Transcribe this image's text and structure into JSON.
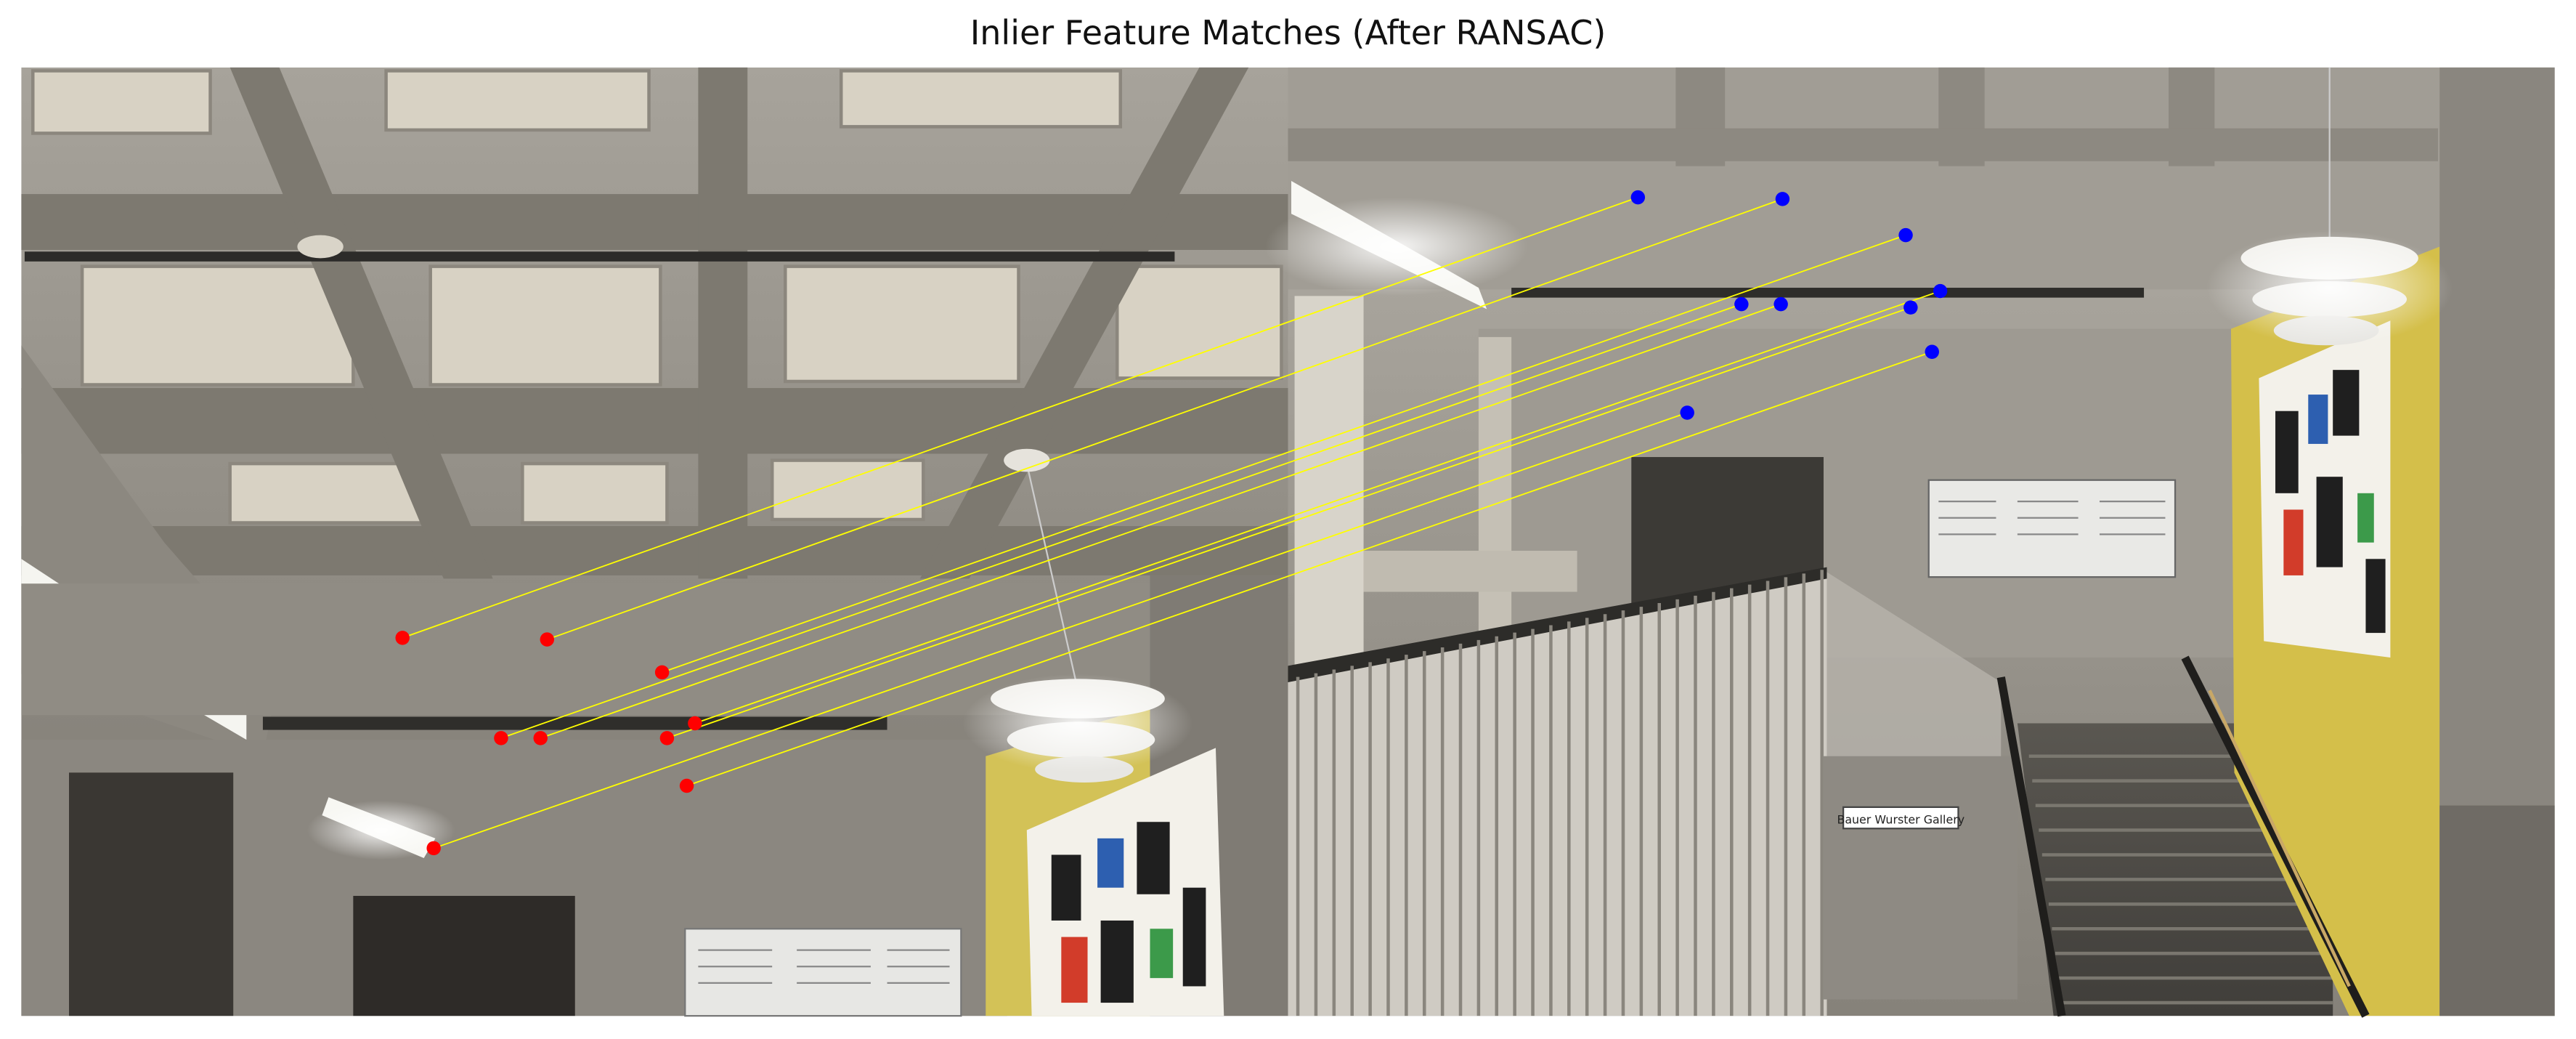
{
  "figure": {
    "title": "Inlier Feature Matches (After RANSAC)",
    "description_hidden": ""
  },
  "scene_text": {
    "gallery_sign": "Bauer Wurster Gallery"
  },
  "colors": {
    "match_line": "#ffff00",
    "left_keypoint": "#ff0000",
    "right_keypoint": "#0000ff",
    "concrete_light": "#a9a59d",
    "concrete_dark": "#6f6b64",
    "wall_yellow": "#d8c34e"
  },
  "matches": [
    {
      "left": [
        245,
        388
      ],
      "right": [
        997,
        120
      ]
    },
    {
      "left": [
        333,
        389
      ],
      "right": [
        1085,
        121
      ]
    },
    {
      "left": [
        403,
        409
      ],
      "right": [
        1160,
        143
      ]
    },
    {
      "left": [
        305,
        449
      ],
      "right": [
        1060,
        185
      ]
    },
    {
      "left": [
        329,
        449
      ],
      "right": [
        1084,
        185
      ]
    },
    {
      "left": [
        423,
        440
      ],
      "right": [
        1181,
        177
      ]
    },
    {
      "left": [
        406,
        449
      ],
      "right": [
        1163,
        187
      ]
    },
    {
      "left": [
        418,
        478
      ],
      "right": [
        1176,
        214
      ]
    },
    {
      "left": [
        264,
        516
      ],
      "right": [
        1027,
        251
      ]
    }
  ]
}
